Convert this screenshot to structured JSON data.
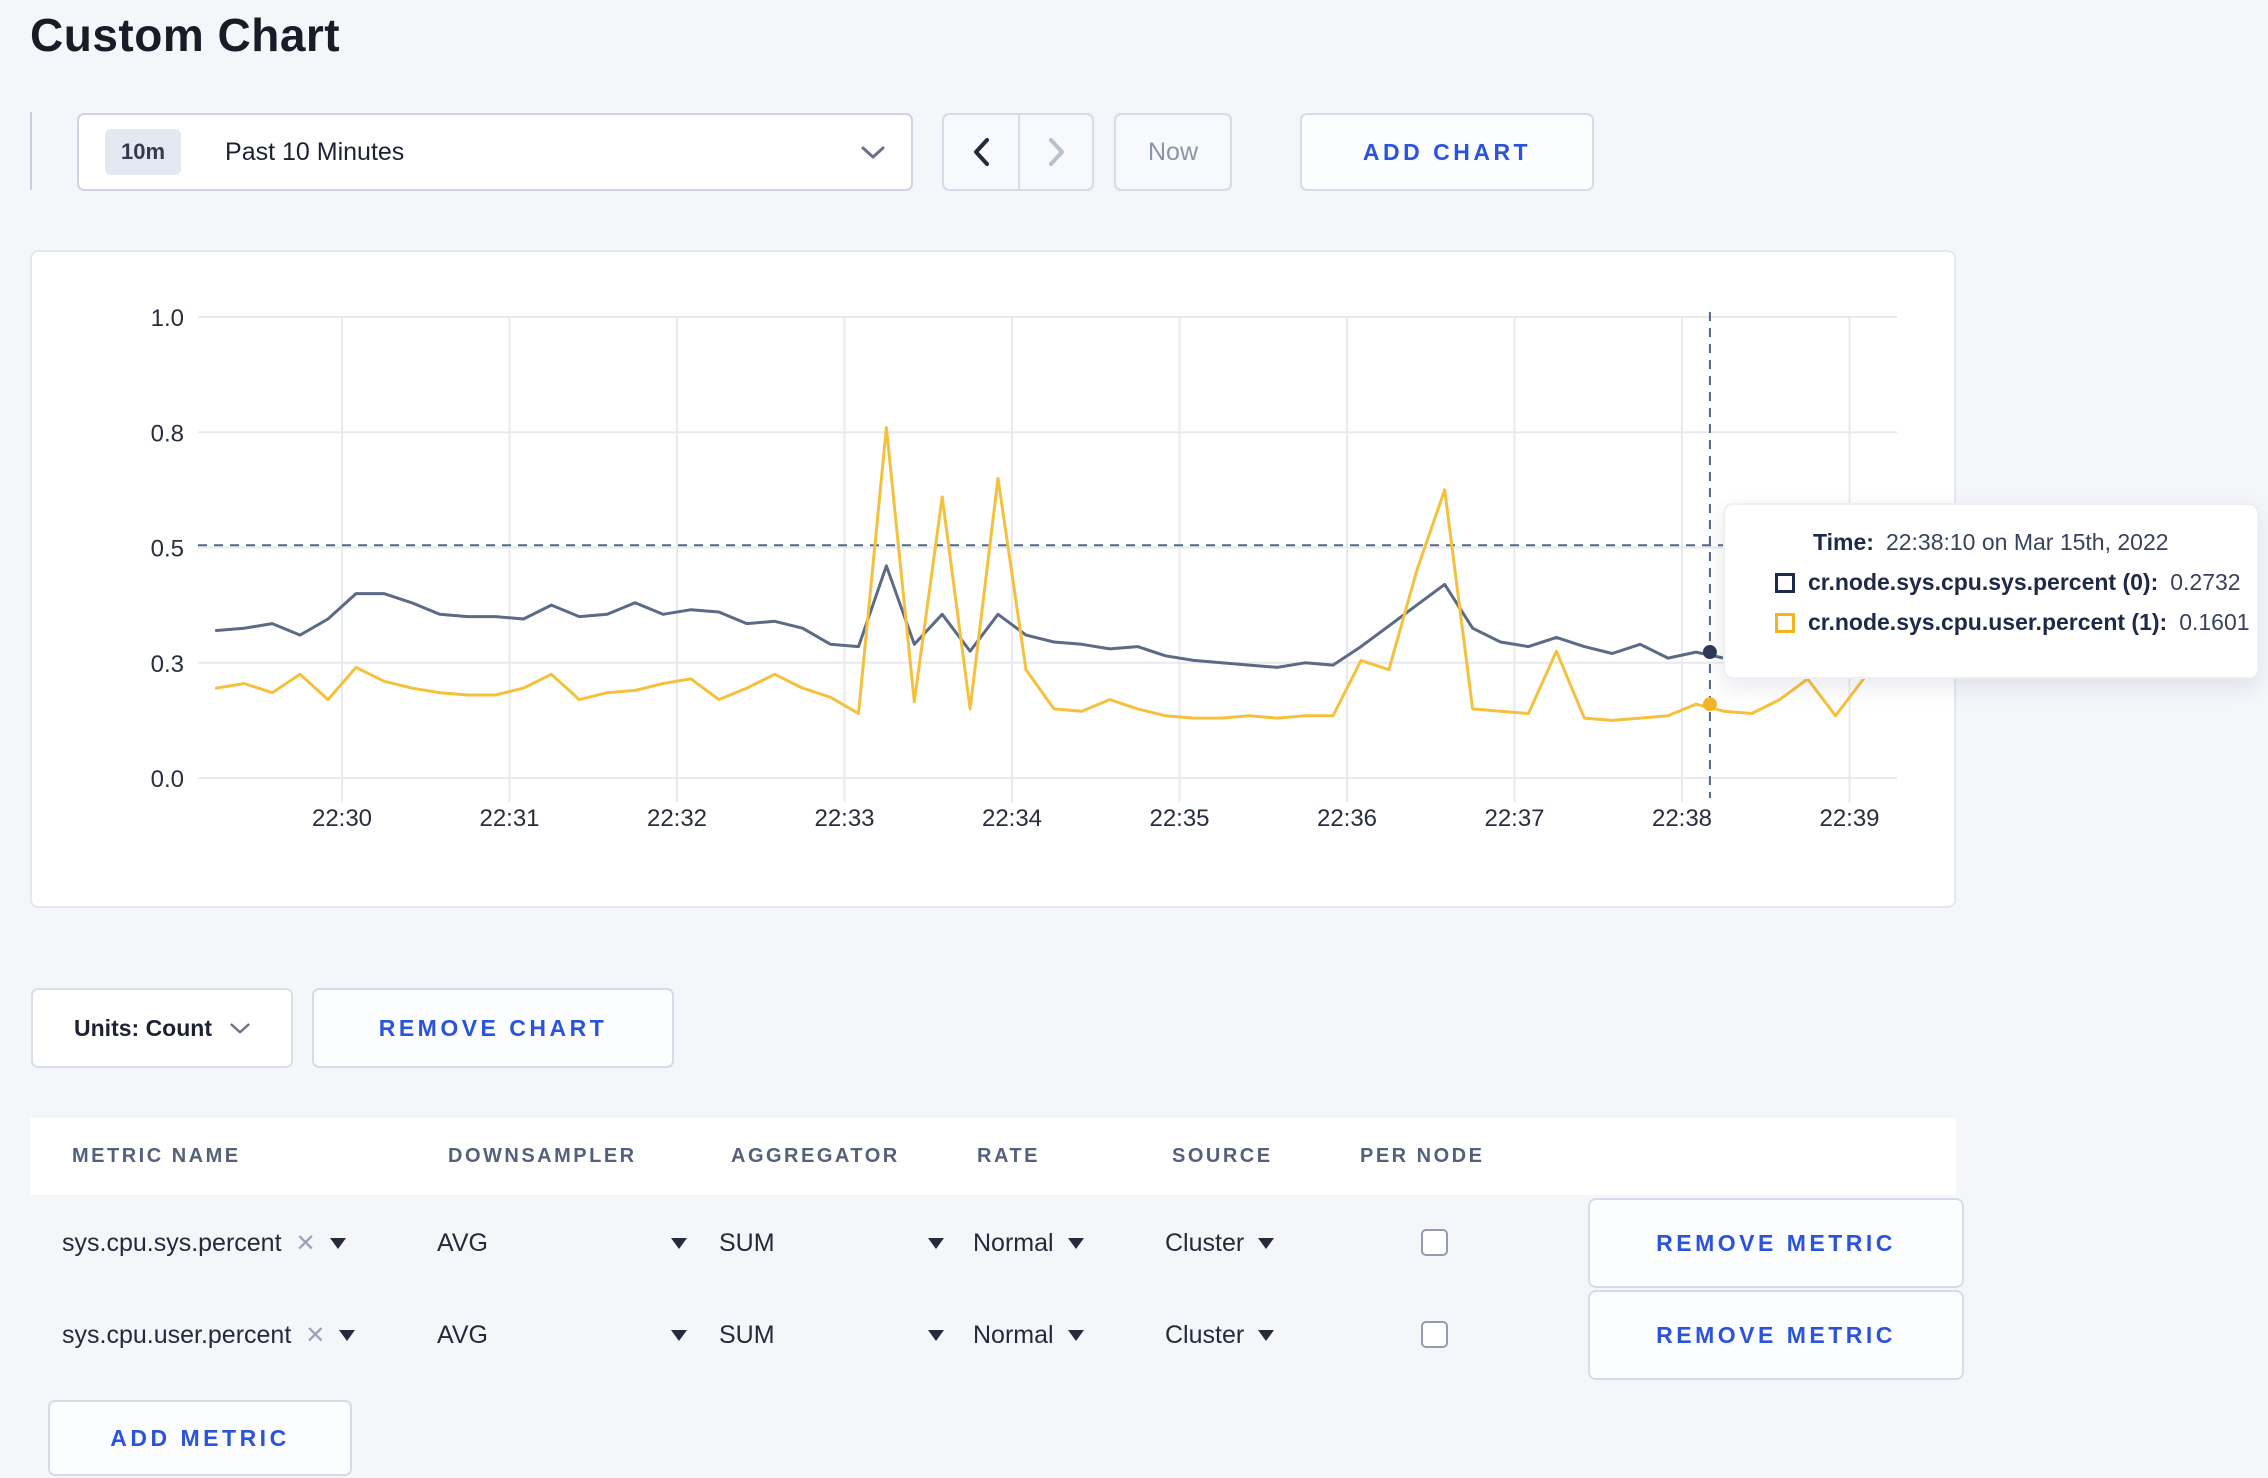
{
  "page": {
    "title": "Custom Chart",
    "background": "#f4f6fa",
    "accent_blue": "#2b53dc"
  },
  "toolbar": {
    "time_window_badge": "10m",
    "time_window_label": "Past 10 Minutes",
    "now_label": "Now",
    "add_chart_label": "ADD CHART"
  },
  "tooltip": {
    "time_label": "Time:",
    "time_value": "22:38:10 on Mar 15th, 2022",
    "series": [
      {
        "label": "cr.node.sys.cpu.sys.percent (0):",
        "value": "0.2732",
        "color": "#1e2a4d"
      },
      {
        "label": "cr.node.sys.cpu.user.percent (1):",
        "value": "0.1601",
        "color": "#f3b51e"
      }
    ]
  },
  "units_bar": {
    "units_label": "Units: Count",
    "remove_chart_label": "REMOVE CHART"
  },
  "metrics_table": {
    "headers": [
      "METRIC NAME",
      "DOWNSAMPLER",
      "AGGREGATOR",
      "RATE",
      "SOURCE",
      "PER NODE"
    ],
    "rows": [
      {
        "metric": "sys.cpu.sys.percent",
        "downsampler": "AVG",
        "aggregator": "SUM",
        "rate": "Normal",
        "source": "Cluster",
        "per_node": false,
        "remove_label": "REMOVE METRIC"
      },
      {
        "metric": "sys.cpu.user.percent",
        "downsampler": "AVG",
        "aggregator": "SUM",
        "rate": "Normal",
        "source": "Cluster",
        "per_node": false,
        "remove_label": "REMOVE METRIC"
      }
    ],
    "add_metric_label": "ADD METRIC"
  },
  "chart_data": {
    "type": "line",
    "title": "",
    "xlabel": "",
    "ylabel": "",
    "ylim": [
      0,
      1.05
    ],
    "grid": true,
    "legend_position": "tooltip",
    "x_ticks": [
      "22:30",
      "22:31",
      "22:32",
      "22:33",
      "22:34",
      "22:35",
      "22:36",
      "22:37",
      "22:38",
      "22:39"
    ],
    "y_ticks": [
      {
        "value": 0.0,
        "label": "0.0"
      },
      {
        "value": 0.25,
        "label": "0.3"
      },
      {
        "value": 0.5,
        "label": "0.5"
      },
      {
        "value": 0.75,
        "label": "0.8"
      },
      {
        "value": 1.0,
        "label": "1.0"
      }
    ],
    "x_start_offset_seconds": -45,
    "x_step_seconds": 10,
    "series": [
      {
        "name": "cr.node.sys.cpu.sys.percent",
        "color": "#5c6a85",
        "dot_color": "#2e3a58",
        "values": [
          0.32,
          0.325,
          0.335,
          0.31,
          0.345,
          0.4,
          0.4,
          0.38,
          0.355,
          0.35,
          0.35,
          0.345,
          0.375,
          0.35,
          0.355,
          0.38,
          0.355,
          0.365,
          0.36,
          0.335,
          0.34,
          0.325,
          0.29,
          0.285,
          0.46,
          0.29,
          0.355,
          0.275,
          0.355,
          0.31,
          0.295,
          0.29,
          0.28,
          0.285,
          0.265,
          0.255,
          0.25,
          0.245,
          0.24,
          0.25,
          0.245,
          0.285,
          0.33,
          0.375,
          0.42,
          0.325,
          0.295,
          0.285,
          0.305,
          0.285,
          0.27,
          0.29,
          0.26,
          0.2732,
          0.26,
          0.255,
          0.265,
          0.27,
          0.28,
          0.295
        ]
      },
      {
        "name": "cr.node.sys.cpu.user.percent",
        "color": "#f5c13d",
        "dot_color": "#f0b32a",
        "values": [
          0.195,
          0.205,
          0.185,
          0.225,
          0.17,
          0.24,
          0.21,
          0.195,
          0.185,
          0.18,
          0.18,
          0.195,
          0.225,
          0.17,
          0.185,
          0.19,
          0.205,
          0.215,
          0.17,
          0.195,
          0.225,
          0.195,
          0.175,
          0.14,
          0.76,
          0.165,
          0.61,
          0.15,
          0.65,
          0.235,
          0.15,
          0.145,
          0.17,
          0.15,
          0.135,
          0.13,
          0.13,
          0.135,
          0.13,
          0.135,
          0.135,
          0.255,
          0.235,
          0.45,
          0.625,
          0.15,
          0.145,
          0.14,
          0.275,
          0.13,
          0.125,
          0.13,
          0.135,
          0.1601,
          0.145,
          0.14,
          0.17,
          0.215,
          0.135,
          0.215
        ]
      }
    ],
    "hover": {
      "time": "22:38:10",
      "x_offset_seconds": 490,
      "values": [
        0.2732,
        0.1601
      ]
    },
    "crosshair_hline_value": 0.505,
    "colors": {
      "grid": "#e9eaee",
      "dashed": "#53688a",
      "axis_text": "#272e3d"
    }
  }
}
